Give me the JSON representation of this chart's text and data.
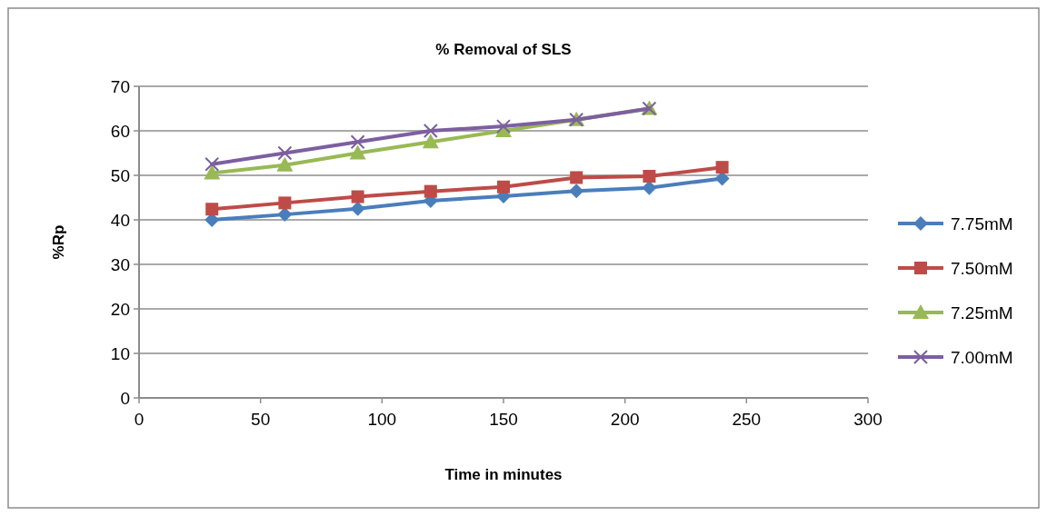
{
  "chart_data": {
    "type": "line",
    "title": "% Removal of SLS",
    "xlabel": "Time in minutes",
    "ylabel": "%Rp",
    "xlim": [
      0,
      300
    ],
    "xticks": [
      0,
      50,
      100,
      150,
      200,
      250,
      300
    ],
    "ylim": [
      0,
      70
    ],
    "yticks": [
      0,
      10,
      20,
      30,
      40,
      50,
      60,
      70
    ],
    "grid": "y",
    "legend": "right",
    "series": [
      {
        "name": "7.75mM",
        "color": "#4a7ebb",
        "marker": "diamond",
        "x": [
          30,
          60,
          90,
          120,
          150,
          180,
          210,
          240
        ],
        "values": [
          40,
          41.2,
          42.5,
          44.3,
          45.3,
          46.5,
          47.2,
          49.3
        ]
      },
      {
        "name": "7.50mM",
        "color": "#be4b48",
        "marker": "square",
        "x": [
          30,
          60,
          90,
          120,
          150,
          180,
          210,
          240
        ],
        "values": [
          42.4,
          43.8,
          45.2,
          46.4,
          47.4,
          49.5,
          49.8,
          51.8
        ]
      },
      {
        "name": "7.25mM",
        "color": "#98b954",
        "marker": "triangle",
        "x": [
          30,
          60,
          90,
          120,
          150,
          180,
          210
        ],
        "values": [
          50.5,
          52.3,
          55,
          57.5,
          60,
          62.5,
          65
        ]
      },
      {
        "name": "7.00mM",
        "color": "#7d5fa0",
        "marker": "cross",
        "x": [
          30,
          60,
          90,
          120,
          150,
          180,
          210
        ],
        "values": [
          52.5,
          55,
          57.5,
          60,
          61,
          62.5,
          65
        ]
      }
    ]
  }
}
